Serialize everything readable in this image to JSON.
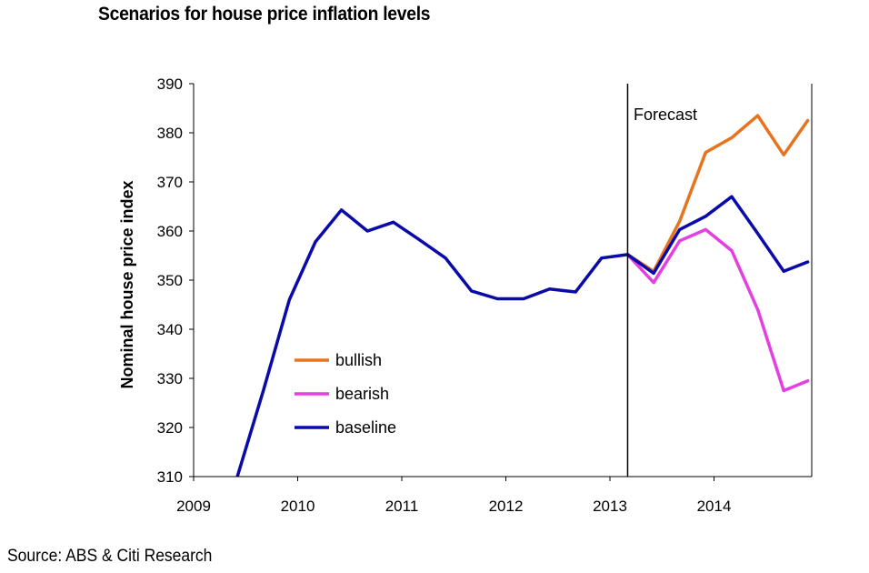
{
  "chart_data": {
    "type": "line",
    "title": "Scenarios for house price inflation levels",
    "ylabel": "Nominal house price index",
    "xlabel": "",
    "source": "Source: ABS & Citi Research",
    "annotation": "Forecast",
    "forecast_start": 2013.17,
    "xlim": [
      2009,
      2014.9
    ],
    "ylim": [
      310,
      390
    ],
    "xticks": [
      2009,
      2010,
      2011,
      2012,
      2013,
      2014
    ],
    "yticks": [
      310,
      320,
      330,
      340,
      350,
      360,
      370,
      380,
      390
    ],
    "legend_position": "lower-left",
    "series": [
      {
        "name": "bullish",
        "color": "#E8731E",
        "x": [
          2013.17,
          2013.42,
          2013.67,
          2013.92,
          2014.17,
          2014.42,
          2014.67,
          2014.9
        ],
        "y": [
          355.2,
          351.8,
          362,
          376,
          379,
          383.5,
          375.5,
          382.5
        ]
      },
      {
        "name": "bearish",
        "color": "#E43FE0",
        "x": [
          2013.17,
          2013.42,
          2013.67,
          2013.92,
          2014.17,
          2014.42,
          2014.67,
          2014.9
        ],
        "y": [
          355.2,
          349.5,
          358,
          360.3,
          356,
          344,
          327.5,
          329.5
        ]
      },
      {
        "name": "baseline",
        "color": "#0A0AA8",
        "x": [
          2009.42,
          2009.67,
          2009.92,
          2010.17,
          2010.42,
          2010.67,
          2010.92,
          2011.17,
          2011.42,
          2011.67,
          2011.92,
          2012.17,
          2012.42,
          2012.67,
          2012.92,
          2013.17,
          2013.42,
          2013.67,
          2013.92,
          2014.17,
          2014.42,
          2014.67,
          2014.9
        ],
        "y": [
          310,
          327.5,
          346,
          357.8,
          364.3,
          360,
          361.8,
          358.2,
          354.5,
          347.8,
          346.2,
          346.2,
          348.2,
          347.6,
          354.5,
          355.2,
          351.4,
          360.3,
          363,
          367,
          359.5,
          351.8,
          353.7
        ]
      }
    ]
  }
}
